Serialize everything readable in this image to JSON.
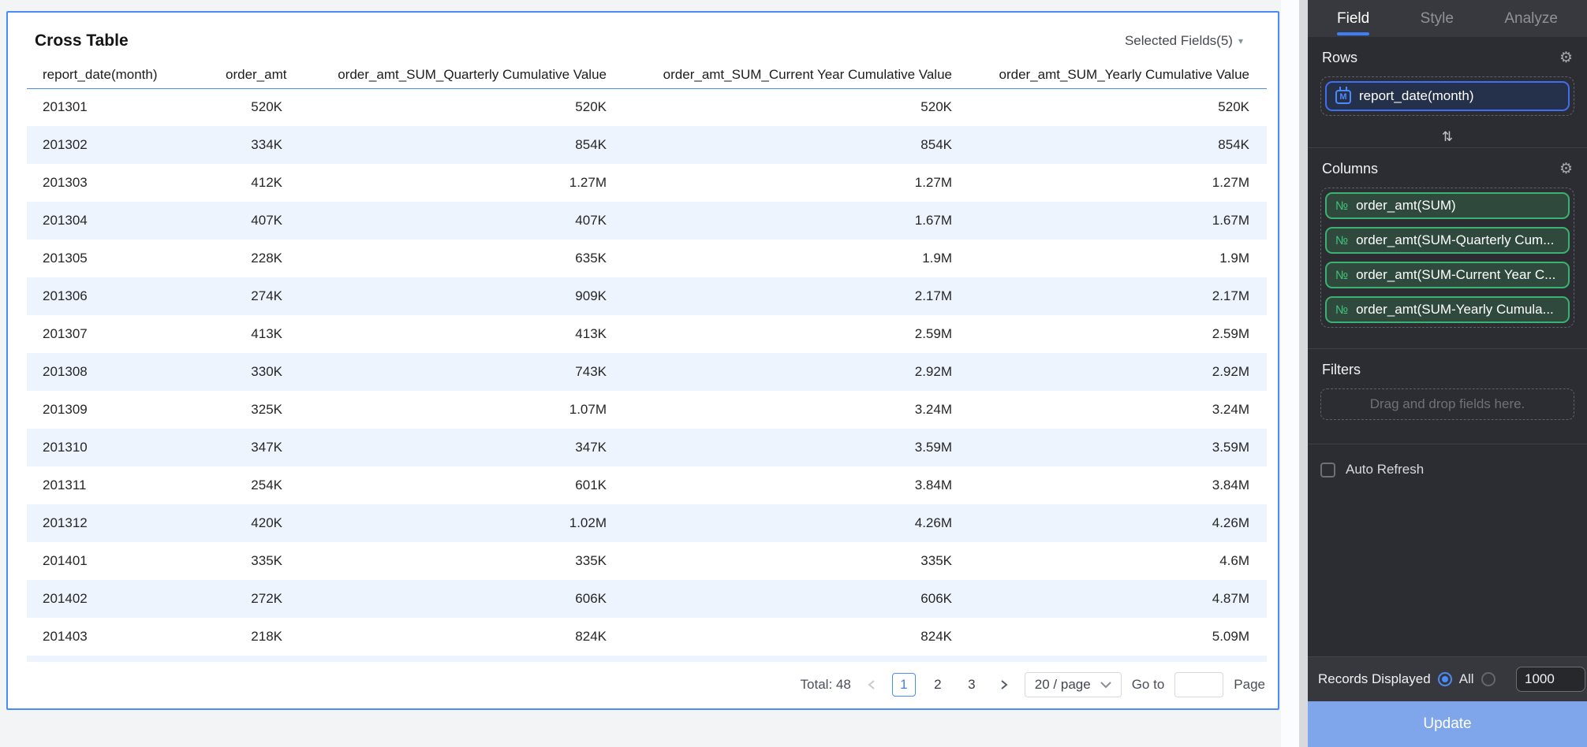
{
  "colors": {
    "accent_blue": "#4a8cf7",
    "card_border": "#4a8cf7",
    "row_stripe": "#eef4fd",
    "panel_background": "#2c2d32",
    "pill_blue_border": "#3d6ff0",
    "pill_green_border": "#3bb271",
    "update_button": "#7fa6ea"
  },
  "card": {
    "title": "Cross Table",
    "selected_fields_label": "Selected Fields(5)",
    "table": {
      "columns": [
        {
          "label": "report_date(month)",
          "align": "left"
        },
        {
          "label": "order_amt",
          "align": "right"
        },
        {
          "label": "order_amt_SUM_Quarterly Cumulative Value",
          "align": "right"
        },
        {
          "label": "order_amt_SUM_Current Year Cumulative Value",
          "align": "right"
        },
        {
          "label": "order_amt_SUM_Yearly Cumulative Value",
          "align": "right"
        }
      ],
      "rows": [
        [
          "201301",
          "520K",
          "520K",
          "520K",
          "520K"
        ],
        [
          "201302",
          "334K",
          "854K",
          "854K",
          "854K"
        ],
        [
          "201303",
          "412K",
          "1.27M",
          "1.27M",
          "1.27M"
        ],
        [
          "201304",
          "407K",
          "407K",
          "1.67M",
          "1.67M"
        ],
        [
          "201305",
          "228K",
          "635K",
          "1.9M",
          "1.9M"
        ],
        [
          "201306",
          "274K",
          "909K",
          "2.17M",
          "2.17M"
        ],
        [
          "201307",
          "413K",
          "413K",
          "2.59M",
          "2.59M"
        ],
        [
          "201308",
          "330K",
          "743K",
          "2.92M",
          "2.92M"
        ],
        [
          "201309",
          "325K",
          "1.07M",
          "3.24M",
          "3.24M"
        ],
        [
          "201310",
          "347K",
          "347K",
          "3.59M",
          "3.59M"
        ],
        [
          "201311",
          "254K",
          "601K",
          "3.84M",
          "3.84M"
        ],
        [
          "201312",
          "420K",
          "1.02M",
          "4.26M",
          "4.26M"
        ],
        [
          "201401",
          "335K",
          "335K",
          "335K",
          "4.6M"
        ],
        [
          "201402",
          "272K",
          "606K",
          "606K",
          "4.87M"
        ],
        [
          "201403",
          "218K",
          "824K",
          "824K",
          "5.09M"
        ]
      ]
    },
    "pagination": {
      "total_label": "Total: 48",
      "pages": [
        "1",
        "2",
        "3"
      ],
      "current_page": "1",
      "page_size_label": "20 / page",
      "goto_label": "Go to",
      "goto_value": "",
      "page_label": "Page"
    }
  },
  "panel": {
    "tabs": [
      {
        "label": "Field",
        "active": true
      },
      {
        "label": "Style",
        "active": false
      },
      {
        "label": "Analyze",
        "active": false
      }
    ],
    "rows_section": {
      "label": "Rows",
      "fields": [
        {
          "icon": "calendar-month-icon",
          "glyph": "M",
          "label": "report_date(month)",
          "kind": "dimension"
        }
      ]
    },
    "columns_section": {
      "label": "Columns",
      "fields": [
        {
          "icon": "numeric-icon",
          "glyph": "№",
          "label": "order_amt(SUM)",
          "kind": "measure"
        },
        {
          "icon": "numeric-icon",
          "glyph": "№",
          "label": "order_amt(SUM-Quarterly Cum...",
          "kind": "measure"
        },
        {
          "icon": "numeric-icon",
          "glyph": "№",
          "label": "order_amt(SUM-Current Year C...",
          "kind": "measure"
        },
        {
          "icon": "numeric-icon",
          "glyph": "№",
          "label": "order_amt(SUM-Yearly Cumula...",
          "kind": "measure"
        }
      ]
    },
    "filters_section": {
      "label": "Filters",
      "placeholder": "Drag and drop fields here."
    },
    "auto_refresh": {
      "label": "Auto Refresh",
      "checked": false
    },
    "records": {
      "label": "Records Displayed",
      "all_label": "All",
      "selected": "all",
      "count_value": "1000"
    },
    "update_label": "Update"
  }
}
